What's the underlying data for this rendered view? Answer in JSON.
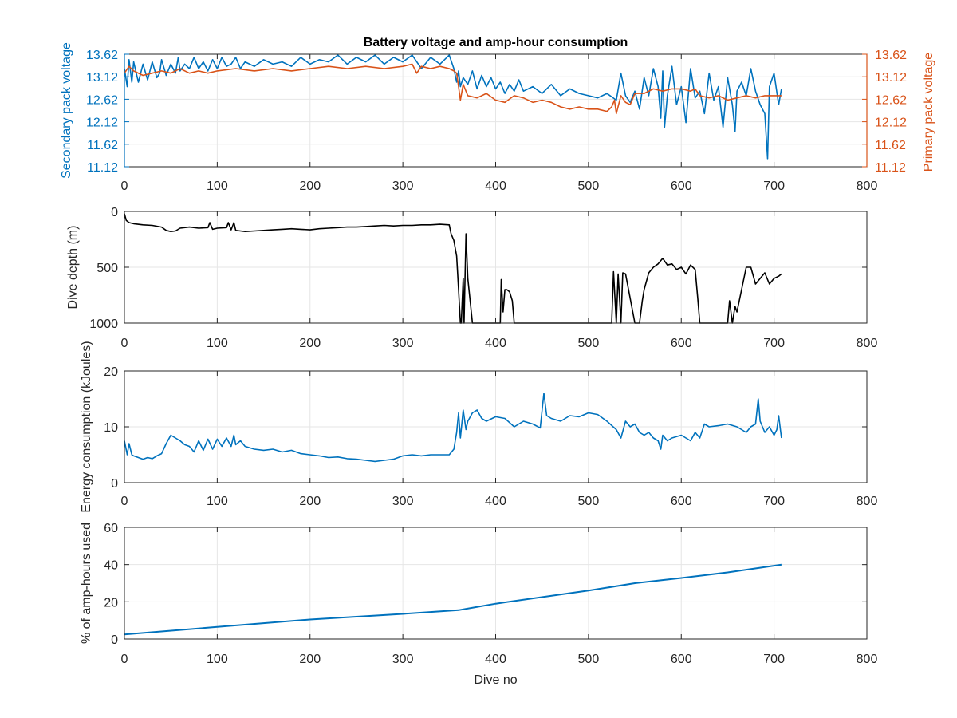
{
  "colors": {
    "blue": "#0072BD",
    "orange": "#D95319",
    "black": "#000000",
    "axis": "#262626",
    "grid": "#e6e6e6"
  },
  "chart_data": [
    {
      "type": "line",
      "title": "Battery voltage and amp-hour consumption",
      "xlabel": "",
      "ylabel": "Secondary pack voltage",
      "ylabel_right": "Primary pack voltage",
      "xlim": [
        0,
        800
      ],
      "ylim": [
        11.12,
        13.62
      ],
      "xticks": [
        "0",
        "100",
        "200",
        "300",
        "400",
        "500",
        "600",
        "700",
        "800"
      ],
      "yticks": [
        "11.12",
        "11.62",
        "12.12",
        "12.62",
        "13.12",
        "13.62"
      ],
      "yticks_right": [
        "11.12",
        "11.62",
        "12.12",
        "12.62",
        "13.12",
        "13.62"
      ],
      "grid": true,
      "series": [
        {
          "color": "#0072BD",
          "axis": "left",
          "x": [
            0,
            3,
            5,
            8,
            10,
            15,
            20,
            25,
            30,
            35,
            38,
            40,
            45,
            50,
            55,
            58,
            60,
            65,
            70,
            75,
            80,
            85,
            90,
            95,
            100,
            105,
            110,
            115,
            120,
            125,
            130,
            140,
            150,
            160,
            170,
            180,
            190,
            200,
            210,
            220,
            230,
            240,
            250,
            260,
            270,
            280,
            290,
            300,
            310,
            320,
            330,
            340,
            350,
            355,
            358,
            360,
            362,
            365,
            370,
            375,
            380,
            385,
            390,
            395,
            400,
            405,
            410,
            415,
            420,
            425,
            430,
            440,
            450,
            460,
            470,
            480,
            490,
            500,
            510,
            520,
            530,
            535,
            540,
            545,
            550,
            555,
            560,
            565,
            570,
            575,
            578,
            580,
            582,
            585,
            590,
            595,
            600,
            605,
            610,
            615,
            620,
            625,
            630,
            635,
            640,
            645,
            650,
            655,
            658,
            660,
            665,
            670,
            675,
            680,
            685,
            690,
            693,
            695,
            700,
            705,
            708
          ],
          "y": [
            13.3,
            12.9,
            13.5,
            13.0,
            13.45,
            13.0,
            13.4,
            13.05,
            13.45,
            13.1,
            13.2,
            13.5,
            13.15,
            13.4,
            13.2,
            13.55,
            13.25,
            13.4,
            13.3,
            13.55,
            13.3,
            13.45,
            13.25,
            13.5,
            13.3,
            13.55,
            13.35,
            13.4,
            13.55,
            13.3,
            13.45,
            13.35,
            13.5,
            13.4,
            13.45,
            13.35,
            13.55,
            13.4,
            13.5,
            13.45,
            13.6,
            13.4,
            13.55,
            13.45,
            13.6,
            13.4,
            13.55,
            13.45,
            13.6,
            13.3,
            13.55,
            13.4,
            13.6,
            13.3,
            13.0,
            13.25,
            12.9,
            13.1,
            12.95,
            13.25,
            12.85,
            13.15,
            12.9,
            13.1,
            12.85,
            13.0,
            12.75,
            12.95,
            12.8,
            13.05,
            12.8,
            12.9,
            12.75,
            12.95,
            12.7,
            12.85,
            12.75,
            12.7,
            12.65,
            12.75,
            12.6,
            13.2,
            12.7,
            12.55,
            12.8,
            12.4,
            13.1,
            12.7,
            13.3,
            12.9,
            12.2,
            13.25,
            12.0,
            12.7,
            13.35,
            12.5,
            12.9,
            12.1,
            13.3,
            12.65,
            12.8,
            12.3,
            13.2,
            12.6,
            12.9,
            12.0,
            13.1,
            12.5,
            11.9,
            12.8,
            13.0,
            12.7,
            13.3,
            12.8,
            12.5,
            12.3,
            11.3,
            12.9,
            13.2,
            12.5,
            12.85
          ]
        },
        {
          "color": "#D95319",
          "axis": "right",
          "x": [
            0,
            5,
            10,
            20,
            30,
            40,
            50,
            60,
            70,
            80,
            90,
            100,
            120,
            140,
            160,
            180,
            200,
            220,
            240,
            260,
            280,
            300,
            310,
            315,
            320,
            330,
            340,
            350,
            355,
            358,
            360,
            362,
            365,
            370,
            380,
            390,
            400,
            410,
            420,
            430,
            440,
            450,
            460,
            470,
            480,
            490,
            500,
            510,
            520,
            525,
            528,
            530,
            535,
            540,
            545,
            550,
            560,
            570,
            580,
            590,
            600,
            610,
            615,
            620,
            630,
            640,
            650,
            660,
            670,
            680,
            690,
            700,
            708
          ],
          "y": [
            13.2,
            13.35,
            13.25,
            13.15,
            13.2,
            13.25,
            13.2,
            13.3,
            13.2,
            13.25,
            13.2,
            13.25,
            13.3,
            13.25,
            13.3,
            13.25,
            13.3,
            13.35,
            13.3,
            13.35,
            13.3,
            13.35,
            13.4,
            13.2,
            13.35,
            13.3,
            13.35,
            13.3,
            13.25,
            13.2,
            12.9,
            12.6,
            12.95,
            12.7,
            12.65,
            12.75,
            12.6,
            12.55,
            12.7,
            12.65,
            12.55,
            12.6,
            12.55,
            12.45,
            12.4,
            12.45,
            12.4,
            12.4,
            12.35,
            12.45,
            12.6,
            12.3,
            12.7,
            12.55,
            12.5,
            12.75,
            12.75,
            12.85,
            12.8,
            12.85,
            12.85,
            12.8,
            12.85,
            12.7,
            12.65,
            12.7,
            12.6,
            12.65,
            12.7,
            12.65,
            12.7,
            12.7,
            12.7
          ]
        }
      ]
    },
    {
      "type": "line",
      "title": "",
      "xlabel": "",
      "ylabel": "Dive depth (m)",
      "xlim": [
        0,
        800
      ],
      "ylim": [
        0,
        1000
      ],
      "y_reversed": true,
      "xticks": [
        "0",
        "100",
        "200",
        "300",
        "400",
        "500",
        "600",
        "700",
        "800"
      ],
      "yticks": [
        "0",
        "500",
        "1000"
      ],
      "grid": true,
      "series": [
        {
          "color": "#000000",
          "x": [
            0,
            2,
            5,
            10,
            20,
            30,
            40,
            45,
            50,
            55,
            60,
            70,
            80,
            90,
            92,
            95,
            100,
            110,
            112,
            115,
            118,
            120,
            125,
            130,
            140,
            150,
            160,
            170,
            180,
            190,
            200,
            210,
            220,
            230,
            240,
            250,
            260,
            270,
            280,
            290,
            300,
            310,
            320,
            330,
            340,
            350,
            352,
            355,
            358,
            360,
            362,
            363,
            365,
            366,
            368,
            370,
            375,
            380,
            390,
            400,
            405,
            406,
            408,
            410,
            412,
            415,
            418,
            420,
            430,
            440,
            450,
            460,
            470,
            480,
            490,
            500,
            510,
            520,
            525,
            527,
            530,
            532,
            535,
            537,
            540,
            550,
            555,
            558,
            560,
            565,
            570,
            575,
            580,
            585,
            590,
            595,
            600,
            605,
            610,
            615,
            618,
            620,
            630,
            640,
            650,
            652,
            655,
            658,
            660,
            665,
            670,
            675,
            680,
            685,
            690,
            695,
            700,
            705,
            708
          ],
          "y": [
            20,
            80,
            100,
            110,
            120,
            125,
            140,
            170,
            180,
            175,
            150,
            140,
            150,
            145,
            100,
            160,
            150,
            145,
            100,
            165,
            100,
            170,
            175,
            180,
            175,
            170,
            165,
            160,
            155,
            160,
            165,
            155,
            150,
            145,
            140,
            140,
            135,
            130,
            125,
            130,
            125,
            125,
            120,
            120,
            115,
            120,
            200,
            260,
            400,
            700,
            1000,
            1000,
            600,
            1000,
            200,
            600,
            1000,
            1000,
            1000,
            1000,
            1000,
            610,
            900,
            700,
            700,
            720,
            800,
            1000,
            1000,
            1000,
            1000,
            1000,
            1000,
            1000,
            1000,
            1000,
            1000,
            1000,
            1000,
            540,
            1000,
            560,
            1000,
            550,
            560,
            1000,
            1000,
            800,
            700,
            550,
            500,
            470,
            420,
            480,
            470,
            520,
            500,
            560,
            480,
            520,
            800,
            1000,
            1000,
            1000,
            1000,
            800,
            1000,
            850,
            900,
            700,
            500,
            500,
            650,
            600,
            550,
            650,
            600,
            580,
            560
          ]
        }
      ]
    },
    {
      "type": "line",
      "title": "",
      "xlabel": "",
      "ylabel": "Energy consumption (kJoules)",
      "xlim": [
        0,
        800
      ],
      "ylim": [
        0,
        20
      ],
      "xticks": [
        "0",
        "100",
        "200",
        "300",
        "400",
        "500",
        "600",
        "700",
        "800"
      ],
      "yticks": [
        "0",
        "10",
        "20"
      ],
      "grid": true,
      "series": [
        {
          "color": "#0072BD",
          "x": [
            0,
            3,
            5,
            8,
            10,
            15,
            20,
            25,
            30,
            35,
            40,
            45,
            50,
            55,
            60,
            65,
            70,
            75,
            80,
            85,
            90,
            95,
            100,
            105,
            110,
            115,
            118,
            120,
            125,
            130,
            140,
            150,
            160,
            170,
            180,
            190,
            200,
            210,
            220,
            230,
            240,
            250,
            260,
            270,
            280,
            290,
            300,
            310,
            320,
            330,
            340,
            350,
            355,
            358,
            360,
            362,
            365,
            368,
            370,
            375,
            380,
            385,
            390,
            400,
            410,
            420,
            430,
            440,
            448,
            452,
            455,
            460,
            470,
            480,
            490,
            500,
            510,
            520,
            530,
            535,
            540,
            545,
            550,
            555,
            560,
            565,
            570,
            575,
            578,
            580,
            585,
            590,
            600,
            610,
            615,
            620,
            625,
            630,
            640,
            650,
            660,
            670,
            675,
            680,
            683,
            685,
            690,
            695,
            700,
            703,
            705,
            708
          ],
          "y": [
            7.5,
            5.0,
            7.0,
            5.0,
            4.8,
            4.5,
            4.2,
            4.5,
            4.3,
            4.8,
            5.2,
            7.0,
            8.5,
            8.0,
            7.5,
            6.8,
            6.5,
            5.5,
            7.5,
            5.8,
            7.8,
            6.0,
            7.8,
            6.5,
            8.0,
            6.5,
            8.5,
            6.8,
            7.5,
            6.5,
            6.0,
            5.8,
            6.0,
            5.5,
            5.8,
            5.2,
            5.0,
            4.8,
            4.5,
            4.6,
            4.3,
            4.2,
            4.0,
            3.8,
            4.0,
            4.2,
            4.8,
            5.0,
            4.8,
            5.0,
            5.0,
            5.0,
            6.0,
            9.0,
            12.5,
            8.0,
            13.0,
            9.5,
            11.0,
            12.5,
            13.0,
            11.5,
            11.0,
            11.8,
            11.5,
            10.0,
            11.0,
            10.5,
            9.8,
            16.0,
            12.0,
            11.5,
            11.0,
            12.0,
            11.8,
            12.5,
            12.2,
            11.0,
            9.5,
            8.0,
            11.0,
            10.0,
            10.5,
            9.0,
            8.5,
            9.0,
            8.0,
            7.5,
            6.0,
            8.5,
            7.5,
            8.0,
            8.5,
            7.5,
            9.0,
            8.0,
            10.5,
            10.0,
            10.2,
            10.5,
            10.0,
            9.0,
            10.0,
            10.5,
            15.0,
            11.0,
            9.0,
            10.0,
            8.5,
            9.5,
            12.0,
            8.0
          ]
        }
      ]
    },
    {
      "type": "line",
      "title": "",
      "xlabel": "Dive no",
      "ylabel": "% of amp-hours used",
      "xlim": [
        0,
        800
      ],
      "ylim": [
        0,
        60
      ],
      "xticks": [
        "0",
        "100",
        "200",
        "300",
        "400",
        "500",
        "600",
        "700",
        "800"
      ],
      "yticks": [
        "0",
        "20",
        "40",
        "60"
      ],
      "grid": true,
      "series": [
        {
          "color": "#0072BD",
          "x": [
            0,
            100,
            200,
            300,
            360,
            400,
            500,
            550,
            600,
            650,
            708
          ],
          "y": [
            2.5,
            6.5,
            10.5,
            13.5,
            15.5,
            19.0,
            26.0,
            30.0,
            32.8,
            35.8,
            40.0
          ]
        }
      ]
    }
  ]
}
